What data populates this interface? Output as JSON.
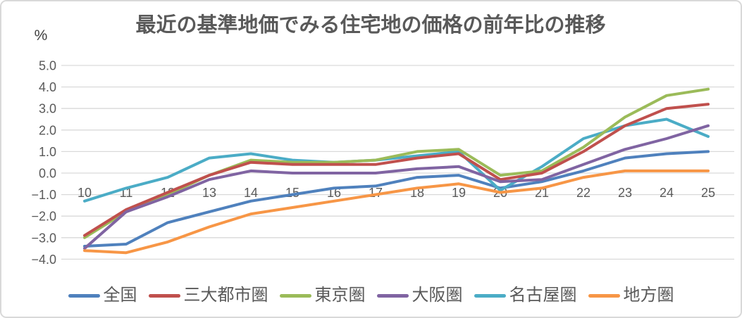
{
  "chart_data": {
    "type": "line",
    "title": "最近の基準地価でみる住宅地の価格の前年比の推移",
    "y_unit_label": "%",
    "xlabel": "",
    "ylabel": "%",
    "x": [
      "10",
      "11",
      "12",
      "13",
      "14",
      "15",
      "16",
      "17",
      "18",
      "19",
      "20",
      "21",
      "22",
      "23",
      "24",
      "25"
    ],
    "y_ticks": [
      "5.0",
      "4.0",
      "3.0",
      "2.0",
      "1.0",
      "0.0",
      "−1.0",
      "−2.0",
      "−3.0",
      "−4.0"
    ],
    "ylim": [
      -4.0,
      5.0
    ],
    "ytick_step": 1.0,
    "grid": true,
    "legend_position": "bottom",
    "series": [
      {
        "name": "全国",
        "color": "#4F81BD",
        "values": [
          -3.4,
          -3.3,
          -2.3,
          -1.8,
          -1.3,
          -1.0,
          -0.7,
          -0.6,
          -0.2,
          -0.1,
          -0.7,
          -0.4,
          0.1,
          0.7,
          0.9,
          1.0
        ]
      },
      {
        "name": "三大都市圏",
        "color": "#C0504D",
        "values": [
          -2.9,
          -1.7,
          -0.9,
          -0.1,
          0.5,
          0.4,
          0.4,
          0.4,
          0.7,
          0.9,
          -0.3,
          0.0,
          1.0,
          2.2,
          3.0,
          3.2
        ]
      },
      {
        "name": "東京圏",
        "color": "#9BBB59",
        "values": [
          -3.0,
          -1.8,
          -1.0,
          -0.1,
          0.6,
          0.5,
          0.5,
          0.6,
          1.0,
          1.1,
          -0.1,
          0.1,
          1.2,
          2.6,
          3.6,
          3.9
        ]
      },
      {
        "name": "大阪圏",
        "color": "#8064A2",
        "values": [
          -3.5,
          -1.8,
          -1.1,
          -0.3,
          0.1,
          0.0,
          0.0,
          0.0,
          0.2,
          0.3,
          -0.4,
          -0.3,
          0.4,
          1.1,
          1.6,
          2.2
        ]
      },
      {
        "name": "名古屋圏",
        "color": "#4BACC6",
        "values": [
          -1.3,
          -0.7,
          -0.2,
          0.7,
          0.9,
          0.6,
          0.5,
          0.6,
          0.8,
          1.0,
          -0.8,
          0.3,
          1.6,
          2.2,
          2.5,
          1.7
        ]
      },
      {
        "name": "地方圏",
        "color": "#F79646",
        "values": [
          -3.6,
          -3.7,
          -3.2,
          -2.5,
          -1.9,
          -1.6,
          -1.3,
          -1.0,
          -0.7,
          -0.5,
          -0.9,
          -0.7,
          -0.2,
          0.1,
          0.1,
          0.1
        ]
      }
    ],
    "draw_order": [
      "全国",
      "名古屋圏",
      "東京圏",
      "三大都市圏",
      "大阪圏",
      "地方圏"
    ]
  }
}
